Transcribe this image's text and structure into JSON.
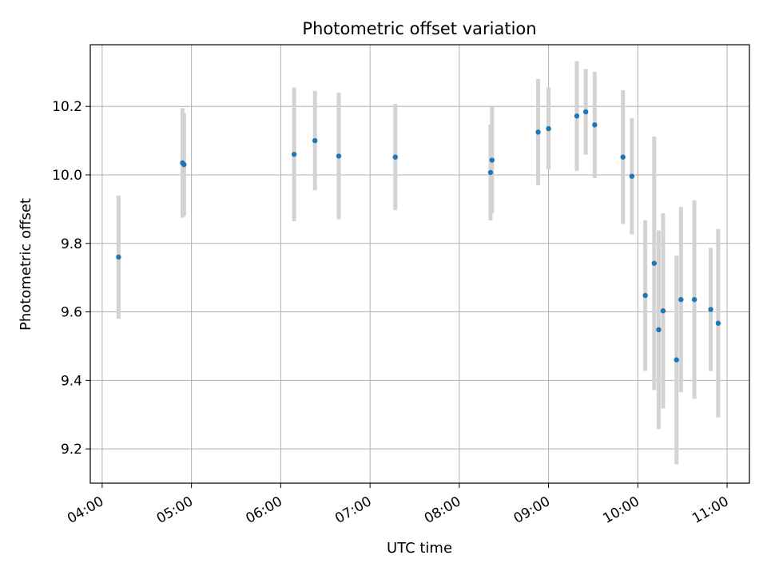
{
  "chart_data": {
    "type": "scatter",
    "title": "Photometric offset variation",
    "xlabel": "UTC time",
    "ylabel": "Photometric offset",
    "xlim": [
      "03:52",
      "11:15"
    ],
    "ylim": [
      9.1,
      10.38
    ],
    "x_ticks": [
      "04:00",
      "05:00",
      "06:00",
      "07:00",
      "08:00",
      "09:00",
      "10:00",
      "11:00"
    ],
    "y_ticks": [
      9.2,
      9.4,
      9.6,
      9.8,
      10.0,
      10.2
    ],
    "grid": true,
    "marker_color": "#1f77b4",
    "errorbar_color": "#d3d3d3",
    "points": [
      {
        "x": "04:11",
        "y": 9.76,
        "err": 0.18
      },
      {
        "x": "04:54",
        "y": 10.035,
        "err": 0.16
      },
      {
        "x": "04:55",
        "y": 10.03,
        "err": 0.15
      },
      {
        "x": "06:09",
        "y": 10.06,
        "err": 0.195
      },
      {
        "x": "06:23",
        "y": 10.1,
        "err": 0.145
      },
      {
        "x": "06:39",
        "y": 10.055,
        "err": 0.185
      },
      {
        "x": "07:17",
        "y": 10.052,
        "err": 0.155
      },
      {
        "x": "08:21",
        "y": 10.007,
        "err": 0.14
      },
      {
        "x": "08:22",
        "y": 10.043,
        "err": 0.155
      },
      {
        "x": "08:53",
        "y": 10.125,
        "err": 0.155
      },
      {
        "x": "09:00",
        "y": 10.135,
        "err": 0.12
      },
      {
        "x": "09:19",
        "y": 10.172,
        "err": 0.16
      },
      {
        "x": "09:25",
        "y": 10.184,
        "err": 0.125
      },
      {
        "x": "09:31",
        "y": 10.146,
        "err": 0.155
      },
      {
        "x": "09:50",
        "y": 10.052,
        "err": 0.195
      },
      {
        "x": "09:56",
        "y": 9.996,
        "err": 0.17
      },
      {
        "x": "10:05",
        "y": 9.648,
        "err": 0.22
      },
      {
        "x": "10:11",
        "y": 9.742,
        "err": 0.37
      },
      {
        "x": "10:14",
        "y": 9.548,
        "err": 0.29
      },
      {
        "x": "10:17",
        "y": 9.603,
        "err": 0.285
      },
      {
        "x": "10:26",
        "y": 9.46,
        "err": 0.305
      },
      {
        "x": "10:29",
        "y": 9.636,
        "err": 0.27
      },
      {
        "x": "10:38",
        "y": 9.636,
        "err": 0.29
      },
      {
        "x": "10:49",
        "y": 9.607,
        "err": 0.18
      },
      {
        "x": "10:54",
        "y": 9.567,
        "err": 0.275
      }
    ]
  }
}
